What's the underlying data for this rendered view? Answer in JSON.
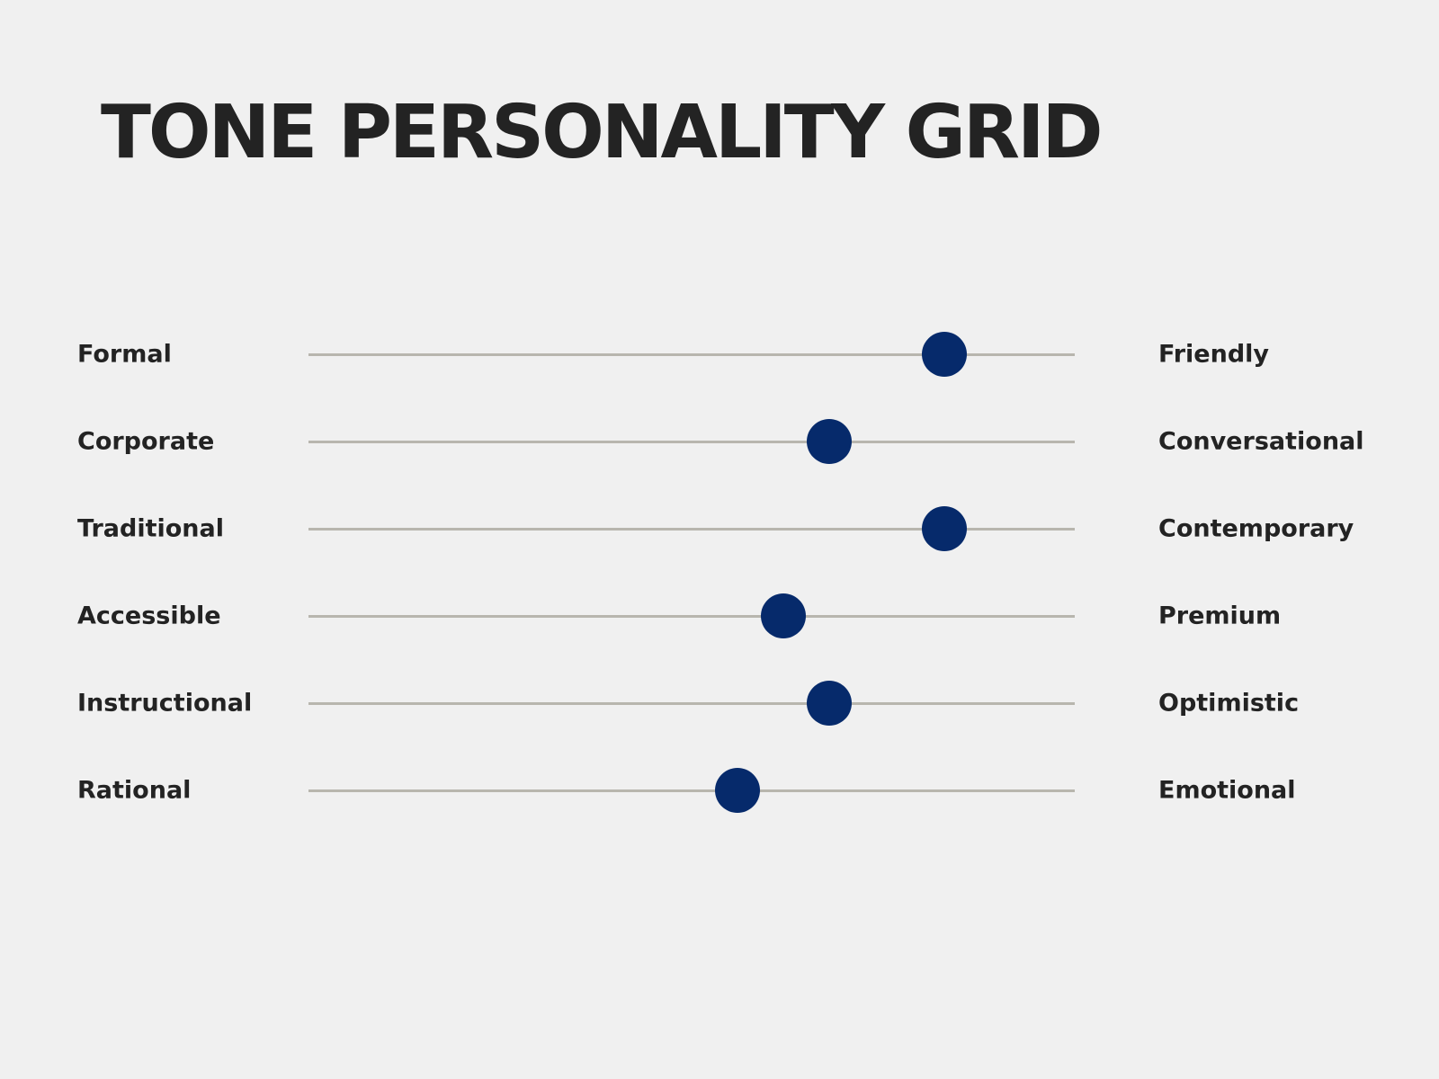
{
  "chart_data": {
    "type": "scatter",
    "title": "TONE PERSONALITY GRID",
    "scale_range": [
      0,
      1
    ],
    "dot_color": "#062a6b",
    "track_color": "#b8b6ae",
    "rows": [
      {
        "left": "Formal",
        "right": "Friendly",
        "value": 0.83
      },
      {
        "left": "Corporate",
        "right": "Conversational",
        "value": 0.68
      },
      {
        "left": "Traditional",
        "right": "Contemporary",
        "value": 0.83
      },
      {
        "left": "Accessible",
        "right": "Premium",
        "value": 0.62
      },
      {
        "left": "Instructional",
        "right": "Optimistic",
        "value": 0.68
      },
      {
        "left": "Rational",
        "right": "Emotional",
        "value": 0.56
      }
    ]
  }
}
